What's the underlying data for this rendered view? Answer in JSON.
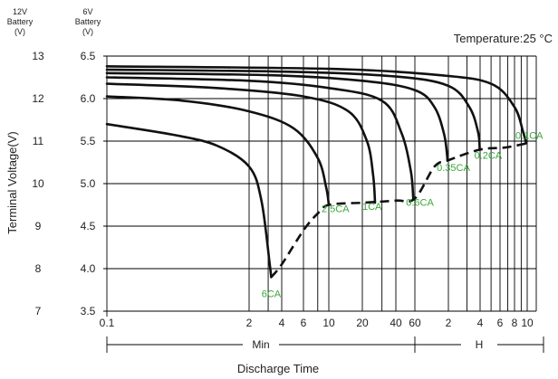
{
  "chart_data": {
    "type": "line",
    "title": "",
    "condition": "Temperature:25 °C",
    "xlabel": "Discharge Time",
    "ylabel": "Terminal Voltage(V)",
    "y_left_header": [
      "12V",
      "Battery",
      "(V)"
    ],
    "y_right_header": [
      "6V",
      "Battery",
      "(V)"
    ],
    "y12_ticks": [
      "13",
      "12",
      "11",
      "10",
      "9",
      "8",
      "7"
    ],
    "y6_ticks": [
      "6.5",
      "6.0",
      "5.5",
      "5.0",
      "4.5",
      "4.0",
      "3.5"
    ],
    "ylim_12v": [
      7,
      13
    ],
    "x_scale": "log (minutes then hours)",
    "x_ticks": [
      {
        "label": "0.1",
        "minutes": 0.1
      },
      {
        "label": "2",
        "minutes": 2
      },
      {
        "label": "4",
        "minutes": 4
      },
      {
        "label": "6",
        "minutes": 6
      },
      {
        "label": "10",
        "minutes": 10
      },
      {
        "label": "20",
        "minutes": 20
      },
      {
        "label": "40",
        "minutes": 40
      },
      {
        "label": "60",
        "minutes": 60
      },
      {
        "label": "2",
        "minutes": 120
      },
      {
        "label": "4",
        "minutes": 240
      },
      {
        "label": "6",
        "minutes": 360
      },
      {
        "label": "8",
        "minutes": 480
      },
      {
        "label": "10",
        "minutes": 600
      }
    ],
    "x_grid_minutes": [
      2,
      3,
      4,
      6,
      8,
      10,
      20,
      30,
      40,
      60,
      120,
      180,
      240,
      300,
      360,
      420,
      480,
      540,
      600
    ],
    "x_unit_segments": [
      {
        "label": "Min",
        "from_minutes": 0.1,
        "to_minutes": 60
      },
      {
        "label": "H",
        "from_minutes": 60,
        "to_minutes": 600
      }
    ],
    "series": [
      {
        "name": "6CA",
        "points": [
          [
            0.1,
            11.4
          ],
          [
            0.4,
            11.15
          ],
          [
            1,
            10.9
          ],
          [
            2,
            10.4
          ],
          [
            2.6,
            9.6
          ],
          [
            3.1,
            8.1
          ],
          [
            3.2,
            7.8
          ]
        ]
      },
      {
        "name": "2.5CA",
        "points": [
          [
            0.1,
            12.05
          ],
          [
            0.5,
            11.95
          ],
          [
            2,
            11.7
          ],
          [
            5,
            11.3
          ],
          [
            8,
            10.6
          ],
          [
            9.5,
            9.9
          ],
          [
            10,
            9.5
          ]
        ]
      },
      {
        "name": "1CA",
        "points": [
          [
            0.1,
            12.35
          ],
          [
            1,
            12.25
          ],
          [
            6,
            12.05
          ],
          [
            15,
            11.7
          ],
          [
            22,
            11.0
          ],
          [
            25,
            10.2
          ],
          [
            26,
            9.55
          ]
        ]
      },
      {
        "name": "0.6CA",
        "points": [
          [
            0.1,
            12.5
          ],
          [
            2,
            12.42
          ],
          [
            10,
            12.25
          ],
          [
            30,
            11.95
          ],
          [
            45,
            11.2
          ],
          [
            55,
            10.3
          ],
          [
            58,
            9.65
          ]
        ]
      },
      {
        "name": "0.35CA",
        "points": [
          [
            0.1,
            12.6
          ],
          [
            3,
            12.55
          ],
          [
            20,
            12.42
          ],
          [
            60,
            12.2
          ],
          [
            90,
            11.8
          ],
          [
            110,
            11.15
          ],
          [
            118,
            10.55
          ]
        ]
      },
      {
        "name": "0.2CA",
        "points": [
          [
            0.1,
            12.68
          ],
          [
            5,
            12.63
          ],
          [
            40,
            12.52
          ],
          [
            120,
            12.3
          ],
          [
            190,
            11.8
          ],
          [
            230,
            11.2
          ],
          [
            238,
            10.8
          ]
        ]
      },
      {
        "name": "0.1CA",
        "points": [
          [
            0.1,
            12.76
          ],
          [
            10,
            12.7
          ],
          [
            100,
            12.55
          ],
          [
            300,
            12.35
          ],
          [
            480,
            11.8
          ],
          [
            560,
            11.2
          ],
          [
            590,
            10.95
          ]
        ]
      }
    ],
    "cutoff_line": [
      [
        3.2,
        7.8
      ],
      [
        4,
        8.1
      ],
      [
        6,
        8.9
      ],
      [
        8,
        9.3
      ],
      [
        10,
        9.5
      ],
      [
        20,
        9.55
      ],
      [
        40,
        9.6
      ],
      [
        60,
        9.65
      ],
      [
        90,
        10.4
      ],
      [
        120,
        10.55
      ],
      [
        240,
        10.8
      ],
      [
        400,
        10.85
      ],
      [
        600,
        10.95
      ]
    ]
  }
}
